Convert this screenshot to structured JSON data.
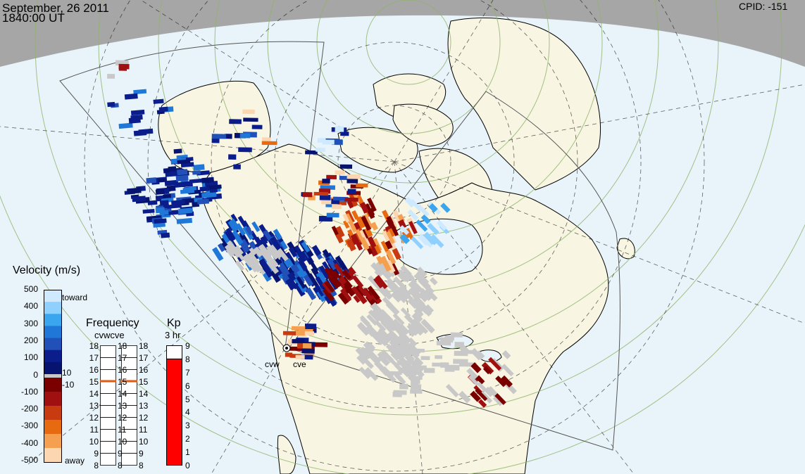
{
  "header": {
    "date": "September, 26 2011",
    "time": "1840:00 UT",
    "cpid": "CPID:  -151"
  },
  "velocity_scale": {
    "title": "Velocity (m/s)",
    "ticks": [
      "500",
      "400",
      "300",
      "200",
      "100",
      "0",
      "-100",
      "-200",
      "-300",
      "-400",
      "-500"
    ],
    "toward_label": "toward",
    "away_label": "away",
    "threshold_pos": "10",
    "threshold_neg": "-10",
    "colors_toward": [
      "#cfe9ff",
      "#8fd0ff",
      "#3aa6f0",
      "#1f78d8",
      "#2050b8",
      "#0a1d8a",
      "#061470"
    ],
    "colors_away": [
      "#7a0000",
      "#a01010",
      "#c83a10",
      "#e86a10",
      "#f5a050",
      "#fcd6b0"
    ]
  },
  "frequency": {
    "title": "Frequency",
    "radars_label": "cvwcve",
    "ticks": [
      "18",
      "17",
      "16",
      "15",
      "14",
      "13",
      "12",
      "11",
      "10",
      "9",
      "8"
    ],
    "cvw_mhz": 15,
    "cve_mhz": 15
  },
  "kp": {
    "title": "Kp",
    "subtitle": "3 hr",
    "ticks": [
      "9",
      "8",
      "7",
      "6",
      "5",
      "4",
      "3",
      "2",
      "1",
      "0"
    ],
    "value": 8,
    "fill_color": "#ff0000"
  },
  "radars": [
    {
      "name": "cvw"
    },
    {
      "name": "cve"
    }
  ],
  "colors": {
    "ocean": "#e8f4fa",
    "land": "#f8f5e3",
    "night": "#a0a0a0",
    "grid": "#90b070"
  }
}
